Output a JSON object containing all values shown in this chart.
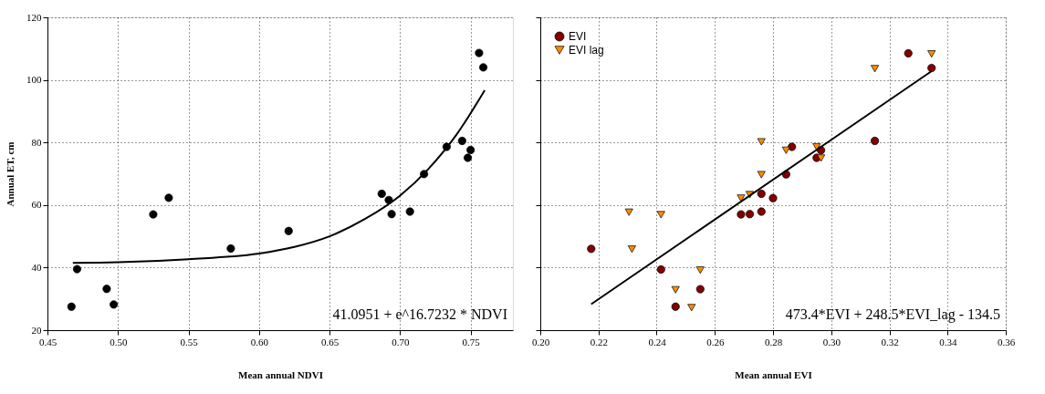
{
  "chart_data": [
    {
      "type": "scatter",
      "xlabel": "Mean annual NDVI",
      "ylabel": "Annual ET, cm",
      "xlim": [
        0.45,
        0.78
      ],
      "ylim": [
        20,
        120
      ],
      "xticks": [
        {
          "value": 0.45,
          "label": "0.45"
        },
        {
          "value": 0.5,
          "label": "0.50"
        },
        {
          "value": 0.55,
          "label": "0.55"
        },
        {
          "value": 0.6,
          "label": "0.60"
        },
        {
          "value": 0.65,
          "label": "0.65"
        },
        {
          "value": 0.7,
          "label": "0.70"
        },
        {
          "value": 0.75,
          "label": "0.75"
        }
      ],
      "yticks": [
        20,
        40,
        60,
        80,
        100,
        120
      ],
      "grid": true,
      "legend": false,
      "annotations": [
        "41.0951 + e^16.7232 * NDVI"
      ],
      "series": [
        {
          "color": "#000000",
          "marker": "circle",
          "x": [
            0.467,
            0.471,
            0.492,
            0.497,
            0.525,
            0.536,
            0.58,
            0.621,
            0.687,
            0.692,
            0.694,
            0.707,
            0.717,
            0.733,
            0.744,
            0.748,
            0.75,
            0.756,
            0.759
          ],
          "values": [
            27.5,
            39.5,
            33.2,
            28.2,
            57.0,
            62.3,
            46.1,
            51.7,
            63.6,
            61.6,
            57.1,
            57.9,
            69.9,
            78.6,
            80.5,
            75.1,
            77.6,
            108.6,
            104.0
          ]
        },
        {
          "type": "line",
          "color": "#000000",
          "x": [
            0.468,
            0.5,
            0.55,
            0.6,
            0.625,
            0.65,
            0.675,
            0.7,
            0.72,
            0.74,
            0.76
          ],
          "values": [
            41.5,
            41.7,
            42.7,
            44.5,
            46.6,
            50.0,
            55.5,
            63.0,
            71.5,
            82.5,
            96.7
          ]
        }
      ]
    },
    {
      "type": "scatter",
      "xlabel": "Mean annual EVI",
      "xlim": [
        0.2,
        0.36
      ],
      "ylim": [
        20,
        120
      ],
      "xticks": [
        {
          "value": 0.2,
          "label": "0.20"
        },
        {
          "value": 0.22,
          "label": "0.22"
        },
        {
          "value": 0.24,
          "label": "0.24"
        },
        {
          "value": 0.26,
          "label": "0.26"
        },
        {
          "value": 0.28,
          "label": "0.28"
        },
        {
          "value": 0.3,
          "label": "0.30"
        },
        {
          "value": 0.32,
          "label": "0.32"
        },
        {
          "value": 0.34,
          "label": "0.34"
        },
        {
          "value": 0.36,
          "label": "0.36"
        }
      ],
      "yticks": [
        20,
        40,
        60,
        80,
        100,
        120
      ],
      "tick_labels": "x",
      "grid": true,
      "legend": "top left",
      "annotations": [
        "473.4*EVI + 248.5*EVI_lag - 134.5"
      ],
      "series": [
        {
          "name": "EVI",
          "color": "#800000",
          "marker": "circle",
          "x": [
            0.2175,
            0.2415,
            0.2465,
            0.255,
            0.269,
            0.272,
            0.276,
            0.276,
            0.28,
            0.2845,
            0.2865,
            0.295,
            0.2965,
            0.315,
            0.3265,
            0.3345
          ],
          "values": [
            46.0,
            39.4,
            27.5,
            33.1,
            57.0,
            57.1,
            57.9,
            63.6,
            62.2,
            69.8,
            78.6,
            75.1,
            77.5,
            80.5,
            108.5,
            103.8
          ]
        },
        {
          "name": "EVI lag",
          "color": "#ff8c00",
          "marker": "triangle_down",
          "x": [
            0.2305,
            0.2315,
            0.2415,
            0.2465,
            0.252,
            0.255,
            0.269,
            0.272,
            0.276,
            0.276,
            0.2845,
            0.295,
            0.2965,
            0.315,
            0.3345
          ],
          "values": [
            57.7,
            45.9,
            56.9,
            32.9,
            27.2,
            39.2,
            62.2,
            63.3,
            69.7,
            80.2,
            77.5,
            78.6,
            75.0,
            103.6,
            108.3
          ]
        },
        {
          "type": "line",
          "color": "#000000",
          "x": [
            0.2175,
            0.3345
          ],
          "values": [
            28.3,
            102.8
          ]
        }
      ]
    }
  ]
}
